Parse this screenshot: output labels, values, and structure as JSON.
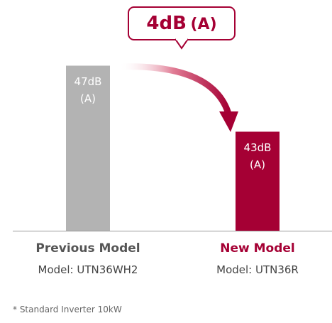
{
  "chart_data": {
    "type": "bar",
    "categories": [
      "Previous Model",
      "New Model"
    ],
    "models": [
      "Model: UTN36WH2",
      "Model: UTN36R"
    ],
    "values": [
      47,
      43
    ],
    "value_labels": [
      "47dB (A)",
      "43dB (A)"
    ],
    "colors": [
      "#b3b3b3",
      "#a50034"
    ],
    "label_colors": [
      "#555555",
      "#a50034"
    ],
    "ylim": [
      37,
      50
    ],
    "annotation": {
      "value": "4dB",
      "unit": "(A)"
    },
    "footnote": "* Standard Inverter 10kW"
  }
}
